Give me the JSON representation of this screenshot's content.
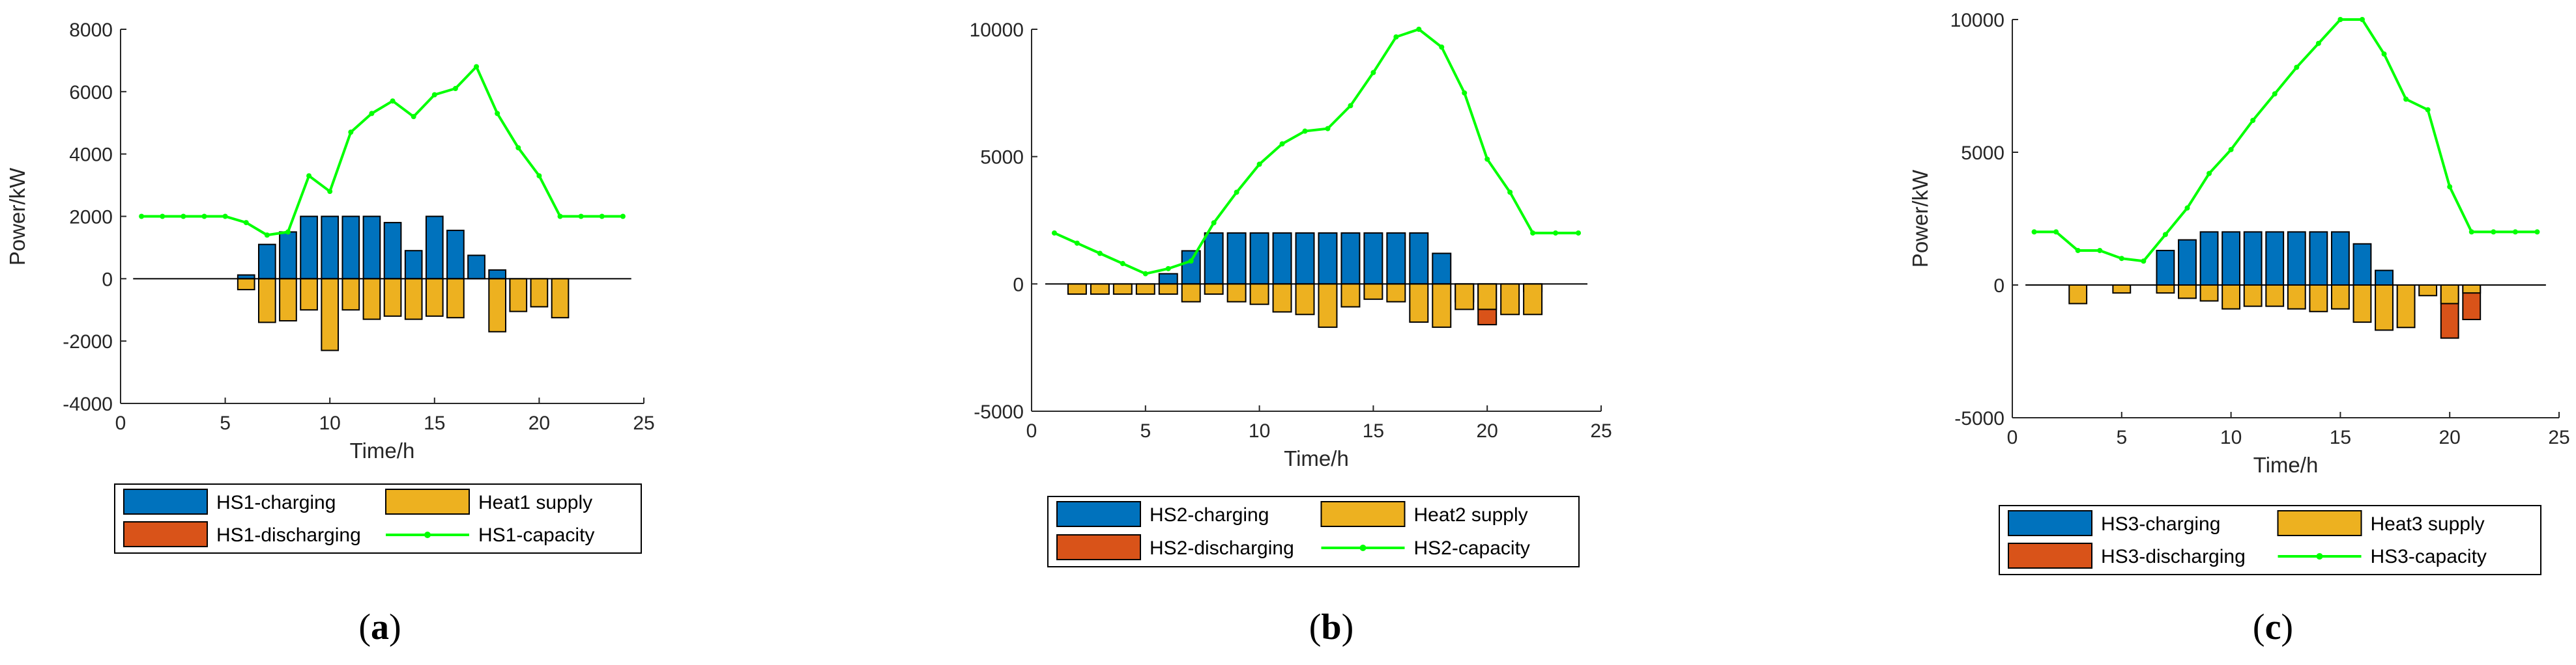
{
  "colors": {
    "charging": "#0072bd",
    "discharging": "#d95319",
    "supply": "#edb120",
    "capacity": "#00ff00",
    "axis": "#262626"
  },
  "chart_data": [
    {
      "type": "bar",
      "panel_label": "a",
      "xlabel": "Time/h",
      "ylabel": "Power/kW",
      "xlim": [
        0,
        25
      ],
      "ylim": [
        -4000,
        8000
      ],
      "xticks": [
        0,
        5,
        10,
        15,
        20,
        25
      ],
      "yticks": [
        -4000,
        -2000,
        0,
        2000,
        4000,
        6000,
        8000
      ],
      "hours": [
        1,
        2,
        3,
        4,
        5,
        6,
        7,
        8,
        9,
        10,
        11,
        12,
        13,
        14,
        15,
        16,
        17,
        18,
        19,
        20,
        21,
        22,
        23,
        24
      ],
      "series": [
        {
          "name": "HS1-charging",
          "kind": "bar",
          "values": [
            0,
            0,
            0,
            0,
            0,
            120,
            1100,
            1500,
            2000,
            2000,
            2000,
            2000,
            1800,
            900,
            2000,
            1550,
            750,
            280,
            0,
            0,
            0,
            0,
            0,
            0
          ]
        },
        {
          "name": "HS1-discharging",
          "kind": "bar",
          "values": [
            0,
            0,
            0,
            0,
            0,
            0,
            0,
            0,
            0,
            0,
            0,
            0,
            0,
            0,
            0,
            0,
            0,
            0,
            0,
            0,
            0,
            0,
            0,
            0
          ]
        },
        {
          "name": "Heat1 supply",
          "kind": "bar",
          "values": [
            0,
            0,
            0,
            0,
            0,
            -350,
            -1400,
            -1350,
            -1000,
            -2300,
            -1000,
            -1300,
            -1200,
            -1300,
            -1200,
            -1250,
            0,
            -1700,
            -1050,
            -900,
            -1250,
            0,
            0,
            0
          ]
        },
        {
          "name": "HS1-capacity",
          "kind": "line",
          "values": [
            2000,
            2000,
            2000,
            2000,
            2000,
            1800,
            1400,
            1500,
            3300,
            2800,
            4700,
            5300,
            5700,
            5200,
            5900,
            6100,
            6800,
            5300,
            4200,
            3300,
            2000,
            2000,
            2000,
            2000
          ]
        }
      ],
      "legend": [
        "HS1-charging",
        "Heat1 supply",
        "HS1-discharging",
        "HS1-capacity"
      ]
    },
    {
      "type": "bar",
      "panel_label": "b",
      "xlabel": "Time/h",
      "ylabel": "",
      "xlim": [
        0,
        25
      ],
      "ylim": [
        -5000,
        10000
      ],
      "xticks": [
        0,
        5,
        10,
        15,
        20,
        25
      ],
      "yticks": [
        -5000,
        0,
        5000,
        10000
      ],
      "hours": [
        1,
        2,
        3,
        4,
        5,
        6,
        7,
        8,
        9,
        10,
        11,
        12,
        13,
        14,
        15,
        16,
        17,
        18,
        19,
        20,
        21,
        22,
        23,
        24
      ],
      "series": [
        {
          "name": "HS2-charging",
          "kind": "bar",
          "values": [
            0,
            0,
            0,
            0,
            0,
            400,
            1300,
            2000,
            2000,
            2000,
            2000,
            2000,
            2000,
            2000,
            2000,
            2000,
            2000,
            1200,
            0,
            0,
            0,
            0,
            0,
            0
          ]
        },
        {
          "name": "HS2-discharging",
          "kind": "bar",
          "values": [
            0,
            0,
            0,
            0,
            0,
            0,
            0,
            0,
            0,
            0,
            0,
            0,
            0,
            0,
            0,
            0,
            0,
            0,
            -700,
            -1600,
            0,
            -300,
            0,
            0
          ]
        },
        {
          "name": "Heat2 supply",
          "kind": "bar",
          "values": [
            0,
            -400,
            -400,
            -400,
            -400,
            -400,
            -700,
            -400,
            -700,
            -800,
            -1100,
            -1200,
            -1700,
            -900,
            -600,
            -700,
            -1500,
            -1700,
            -1000,
            -1000,
            -1200,
            -1200,
            0,
            0
          ]
        },
        {
          "name": "HS2-capacity",
          "kind": "line",
          "values": [
            2000,
            1600,
            1200,
            800,
            400,
            600,
            900,
            2400,
            3600,
            4700,
            5500,
            6000,
            6100,
            7000,
            8300,
            9700,
            10000,
            9300,
            7500,
            4900,
            3600,
            2000,
            2000,
            2000
          ]
        }
      ],
      "legend": [
        "HS2-charging",
        "Heat2 supply",
        "HS2-discharging",
        "HS2-capacity"
      ]
    },
    {
      "type": "bar",
      "panel_label": "c",
      "xlabel": "Time/h",
      "ylabel": "Power/kW",
      "xlim": [
        0,
        25
      ],
      "ylim": [
        -5000,
        10000
      ],
      "xticks": [
        0,
        5,
        10,
        15,
        20,
        25
      ],
      "yticks": [
        -5000,
        0,
        5000,
        10000
      ],
      "hours": [
        1,
        2,
        3,
        4,
        5,
        6,
        7,
        8,
        9,
        10,
        11,
        12,
        13,
        14,
        15,
        16,
        17,
        18,
        19,
        20,
        21,
        22,
        23,
        24
      ],
      "series": [
        {
          "name": "HS3-charging",
          "kind": "bar",
          "values": [
            0,
            0,
            0,
            0,
            0,
            0,
            1300,
            1700,
            2000,
            2000,
            2000,
            2000,
            2000,
            2000,
            2000,
            1550,
            550,
            0,
            0,
            0,
            0,
            0,
            0,
            0
          ]
        },
        {
          "name": "HS3-discharging",
          "kind": "bar",
          "values": [
            0,
            0,
            0,
            0,
            0,
            0,
            0,
            0,
            0,
            0,
            0,
            0,
            0,
            0,
            0,
            0,
            0,
            0,
            0,
            -2000,
            -1300,
            0,
            0,
            0
          ]
        },
        {
          "name": "Heat3 supply",
          "kind": "bar",
          "values": [
            0,
            0,
            -700,
            0,
            -300,
            0,
            -300,
            -500,
            -600,
            -900,
            -800,
            -800,
            -900,
            -1000,
            -900,
            -1400,
            -1700,
            -1600,
            -400,
            -700,
            -300,
            0,
            0,
            0
          ]
        },
        {
          "name": "HS3-capacity",
          "kind": "line",
          "values": [
            2000,
            2000,
            1300,
            1300,
            1000,
            900,
            1900,
            2900,
            4200,
            5100,
            6200,
            7200,
            8200,
            9100,
            10000,
            10000,
            8700,
            7000,
            6600,
            3700,
            2000,
            2000,
            2000,
            2000
          ]
        }
      ],
      "legend": [
        "HS3-charging",
        "Heat3 supply",
        "HS3-discharging",
        "HS3-capacity"
      ]
    }
  ]
}
